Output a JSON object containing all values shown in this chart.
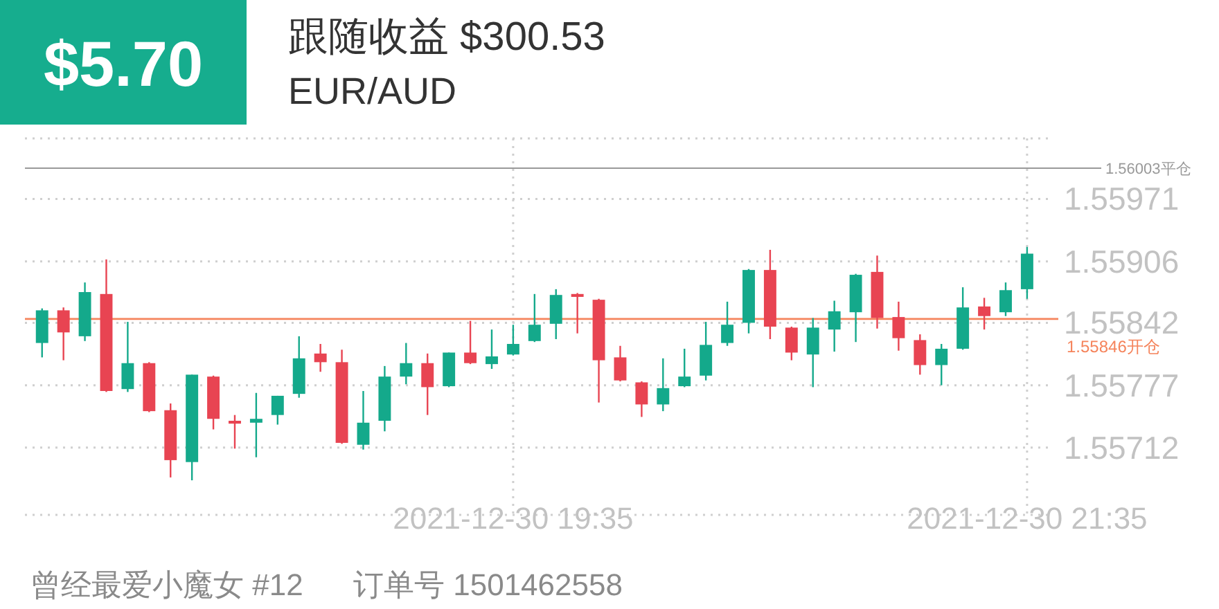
{
  "chart_data": {
    "type": "candlestick",
    "title": "跟随收益 $300.53",
    "subtitle": "EUR/AUD",
    "annotations": [
      "$5.70",
      "曾经最爱小魔女 #12",
      "订单号 1501462558"
    ],
    "x": [
      "2021-12-30T17:45",
      "2021-12-30T17:50",
      "2021-12-30T17:55",
      "2021-12-30T18:00",
      "2021-12-30T18:05",
      "2021-12-30T18:10",
      "2021-12-30T18:15",
      "2021-12-30T18:20",
      "2021-12-30T18:25",
      "2021-12-30T18:30",
      "2021-12-30T18:35",
      "2021-12-30T18:40",
      "2021-12-30T18:45",
      "2021-12-30T18:50",
      "2021-12-30T18:55",
      "2021-12-30T19:00",
      "2021-12-30T19:05",
      "2021-12-30T19:10",
      "2021-12-30T19:15",
      "2021-12-30T19:20",
      "2021-12-30T19:25",
      "2021-12-30T19:30",
      "2021-12-30T19:35",
      "2021-12-30T19:40",
      "2021-12-30T19:45",
      "2021-12-30T19:50",
      "2021-12-30T19:55",
      "2021-12-30T20:00",
      "2021-12-30T20:05",
      "2021-12-30T20:10",
      "2021-12-30T20:15",
      "2021-12-30T20:20",
      "2021-12-30T20:25",
      "2021-12-30T20:30",
      "2021-12-30T20:35",
      "2021-12-30T20:40",
      "2021-12-30T20:45",
      "2021-12-30T20:50",
      "2021-12-30T20:55",
      "2021-12-30T21:00",
      "2021-12-30T21:05",
      "2021-12-30T21:10",
      "2021-12-30T21:15",
      "2021-12-30T21:20",
      "2021-12-30T21:25",
      "2021-12-30T21:30",
      "2021-12-30T21:35"
    ],
    "ohlc": [
      [
        1.55821,
        1.55857,
        1.55806,
        1.55855
      ],
      [
        1.55855,
        1.55858,
        1.55803,
        1.55832
      ],
      [
        1.55828,
        1.55884,
        1.55823,
        1.55874
      ],
      [
        1.55872,
        1.55908,
        1.5577,
        1.55771
      ],
      [
        1.55773,
        1.55843,
        1.5577,
        1.558
      ],
      [
        1.558,
        1.55801,
        1.55749,
        1.5575
      ],
      [
        1.55751,
        1.55758,
        1.55681,
        1.55699
      ],
      [
        1.55697,
        1.55788,
        1.55678,
        1.55788
      ],
      [
        1.55786,
        1.55787,
        1.55731,
        1.55742
      ],
      [
        1.5574,
        1.55746,
        1.55711,
        1.55737
      ],
      [
        1.55738,
        1.55769,
        1.55702,
        1.55742
      ],
      [
        1.55746,
        1.55766,
        1.55736,
        1.55766
      ],
      [
        1.55768,
        1.55828,
        1.55764,
        1.55805
      ],
      [
        1.5581,
        1.5582,
        1.55791,
        1.55801
      ],
      [
        1.55801,
        1.55814,
        1.55716,
        1.55717
      ],
      [
        1.55715,
        1.55771,
        1.5571,
        1.55738
      ],
      [
        1.5574,
        1.55797,
        1.55729,
        1.55786
      ],
      [
        1.55786,
        1.55821,
        1.55778,
        1.558
      ],
      [
        1.558,
        1.5581,
        1.55746,
        1.55775
      ],
      [
        1.55776,
        1.55811,
        1.55775,
        1.55811
      ],
      [
        1.55811,
        1.55844,
        1.55799,
        1.558
      ],
      [
        1.55799,
        1.55835,
        1.55794,
        1.55807
      ],
      [
        1.55809,
        1.5584,
        1.55808,
        1.5582
      ],
      [
        1.55823,
        1.55872,
        1.55822,
        1.5584
      ],
      [
        1.55841,
        1.55877,
        1.55825,
        1.55871
      ],
      [
        1.55872,
        1.55873,
        1.55831,
        1.55869
      ],
      [
        1.55866,
        1.55867,
        1.55759,
        1.55803
      ],
      [
        1.55806,
        1.55818,
        1.55781,
        1.55782
      ],
      [
        1.5578,
        1.55781,
        1.55744,
        1.55757
      ],
      [
        1.55757,
        1.55805,
        1.5575,
        1.55774
      ],
      [
        1.55776,
        1.55815,
        1.55775,
        1.55786
      ],
      [
        1.55787,
        1.55843,
        1.55782,
        1.55819
      ],
      [
        1.55821,
        1.55864,
        1.55818,
        1.5584
      ],
      [
        1.55842,
        1.55898,
        1.55831,
        1.55897
      ],
      [
        1.55897,
        1.55918,
        1.55825,
        1.55838
      ],
      [
        1.55837,
        1.55838,
        1.55803,
        1.55811
      ],
      [
        1.55809,
        1.55847,
        1.55775,
        1.55837
      ],
      [
        1.55835,
        1.55865,
        1.55812,
        1.55854
      ],
      [
        1.55853,
        1.55893,
        1.55822,
        1.55892
      ],
      [
        1.55895,
        1.55912,
        1.55836,
        1.55847
      ],
      [
        1.55848,
        1.55864,
        1.55813,
        1.55826
      ],
      [
        1.55824,
        1.5583,
        1.55788,
        1.55798
      ],
      [
        1.55798,
        1.5582,
        1.55777,
        1.55815
      ],
      [
        1.55815,
        1.55879,
        1.55814,
        1.55858
      ],
      [
        1.55859,
        1.55868,
        1.55835,
        1.55849
      ],
      [
        1.55853,
        1.55884,
        1.55849,
        1.55876
      ],
      [
        1.55877,
        1.55921,
        1.55867,
        1.55914
      ]
    ],
    "xlim": [
      "2021-12-30T17:41",
      "2021-12-30T21:41"
    ],
    "xticks": [
      {
        "value": "2021-12-30T19:35",
        "label": "2021-12-30 19:35"
      },
      {
        "value": "2021-12-30T21:35",
        "label": "2021-12-30 21:35"
      }
    ],
    "ylim": [
      1.55642,
      1.56034
    ],
    "yticks": [
      1.55971,
      1.55906,
      1.55842,
      1.55777,
      1.55712
    ],
    "ref_lines": [
      {
        "axis": "y",
        "value": 1.56003,
        "label": "1.56003平仓",
        "color": "#999999"
      },
      {
        "axis": "y",
        "value": 1.55846,
        "label": "1.55846开仓",
        "color": "#f5845c"
      }
    ],
    "grid": true
  }
}
